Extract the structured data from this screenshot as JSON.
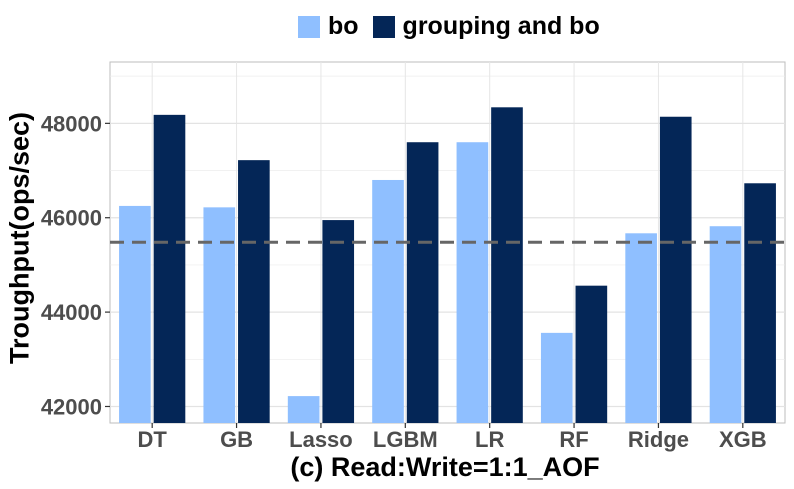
{
  "chart_data": {
    "type": "bar",
    "categories": [
      "DT",
      "GB",
      "Lasso",
      "LGBM",
      "LR",
      "RF",
      "Ridge",
      "XGB"
    ],
    "series": [
      {
        "name": "bo",
        "color": "#8fbfff",
        "values": [
          46250,
          46220,
          42220,
          46800,
          47600,
          43560,
          45670,
          45820
        ]
      },
      {
        "name": "grouping and bo",
        "color": "#042657",
        "values": [
          48180,
          47220,
          45950,
          47600,
          48340,
          44560,
          48140,
          46730
        ]
      }
    ],
    "reference_line": {
      "value": 45480,
      "style": "dashed",
      "color": "#666666"
    },
    "yticks": [
      42000,
      44000,
      46000,
      48000
    ],
    "ylim": [
      41650,
      49300
    ],
    "ylabel": "Troughput(ops/sec)",
    "xlabel": "",
    "caption": "(c) Read:Write=1:1_AOF",
    "grid": true,
    "legend_position": "top"
  }
}
